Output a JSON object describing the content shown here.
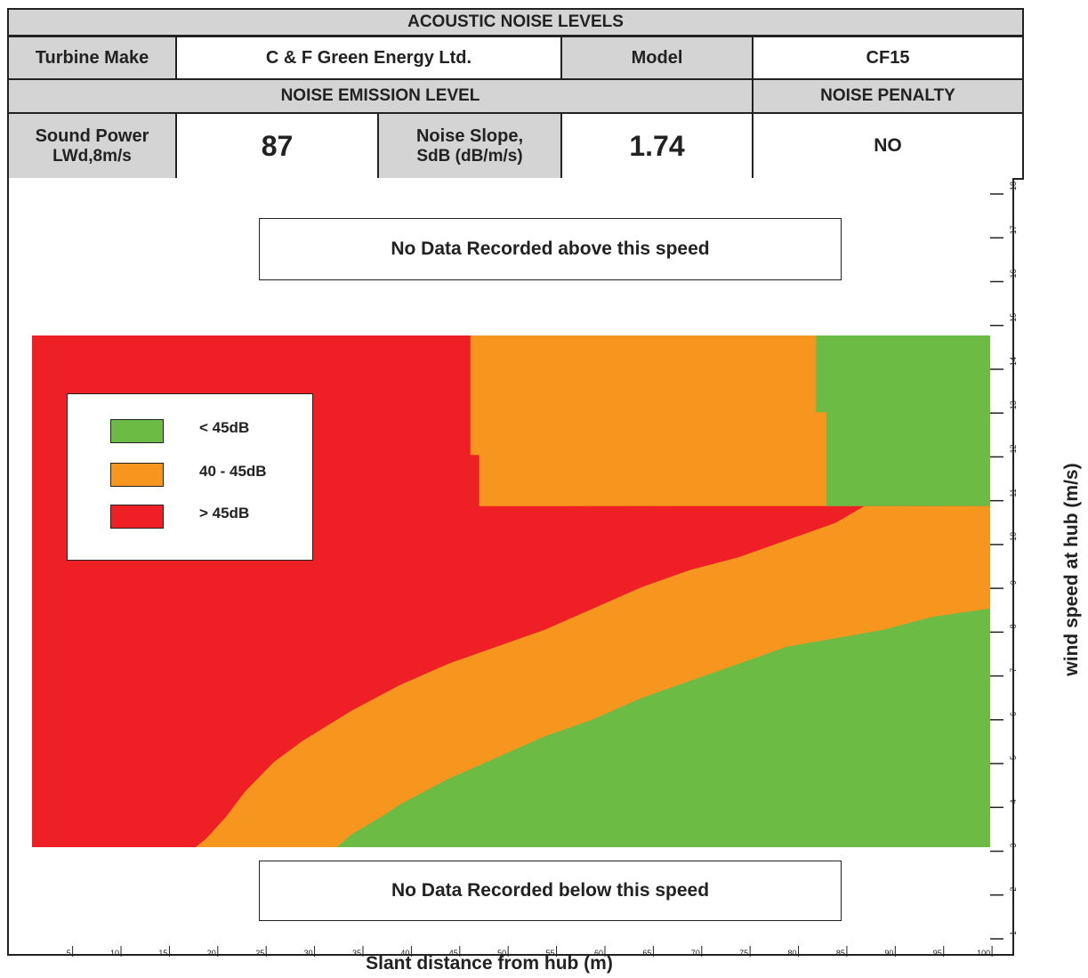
{
  "header": {
    "title": "ACOUSTIC NOISE LEVELS",
    "turbine_make_label": "Turbine Make",
    "turbine_make_value": "C & F Green Energy Ltd.",
    "model_label": "Model",
    "model_value": "CF15",
    "emission_title": "NOISE EMISSION LEVEL",
    "penalty_title": "NOISE PENALTY",
    "sound_power_label_1": "Sound Power",
    "sound_power_label_2": "LWd,8m/s",
    "sound_power_value": "87",
    "noise_slope_label_1": "Noise Slope,",
    "noise_slope_label_2": "SdB (dB/m/s)",
    "noise_slope_value": "1.74",
    "penalty_value": "NO"
  },
  "notes": {
    "above": "No Data Recorded above this speed",
    "below": "No Data Recorded below this speed"
  },
  "legend": [
    {
      "label": "< 45dB",
      "color": "#6bbb44"
    },
    {
      "label": "40 - 45dB",
      "color": "#f7961e"
    },
    {
      "label": "> 45dB",
      "color": "#ee2026"
    }
  ],
  "chart_data": {
    "type": "heatmap",
    "xlabel": "Slant distance from hub (m)",
    "ylabel": "wind speed at hub (m/s)",
    "x_ticks": [
      5,
      10,
      15,
      20,
      25,
      30,
      35,
      40,
      45,
      50,
      55,
      60,
      65,
      70,
      75,
      80,
      85,
      90,
      95,
      100
    ],
    "y_ticks": [
      1,
      2,
      3,
      4,
      5,
      6,
      7,
      8,
      9,
      10,
      11,
      12,
      13,
      14,
      15,
      16,
      17,
      18
    ],
    "xlim": [
      2,
      101.5
    ],
    "ylim": [
      0.3,
      18.6
    ],
    "data_y_range": [
      3,
      15
    ],
    "colors": {
      "green": "#6bbb44",
      "orange": "#f7961e",
      "red": "#ee2026"
    },
    "boundaries_low_wind": {
      "wind_range": [
        3,
        11
      ],
      "red_orange_edge": [
        [
          18.9,
          3
        ],
        [
          20,
          3.2
        ],
        [
          22,
          3.7
        ],
        [
          24,
          4.3
        ],
        [
          27,
          5
        ],
        [
          30,
          5.5
        ],
        [
          35,
          6.2
        ],
        [
          40,
          6.8
        ],
        [
          45,
          7.3
        ],
        [
          50,
          7.7
        ],
        [
          55,
          8.1
        ],
        [
          60,
          8.6
        ],
        [
          65,
          9.1
        ],
        [
          70,
          9.5
        ],
        [
          75,
          9.8
        ],
        [
          80,
          10.2
        ],
        [
          85,
          10.6
        ],
        [
          88,
          11
        ]
      ],
      "orange_green_edge": [
        [
          33.5,
          3
        ],
        [
          35,
          3.3
        ],
        [
          38,
          3.7
        ],
        [
          40,
          4
        ],
        [
          45,
          4.6
        ],
        [
          50,
          5.1
        ],
        [
          55,
          5.6
        ],
        [
          60,
          6
        ],
        [
          65,
          6.5
        ],
        [
          70,
          6.9
        ],
        [
          75,
          7.3
        ],
        [
          80,
          7.7
        ],
        [
          85,
          7.9
        ],
        [
          90,
          8.1
        ],
        [
          95,
          8.4
        ],
        [
          101,
          8.6
        ]
      ]
    },
    "boundaries_high_wind": {
      "wind_range": [
        11,
        15
      ],
      "red_orange_edge": [
        [
          47.3,
          15
        ],
        [
          47.3,
          12.2
        ],
        [
          48.2,
          12.2
        ],
        [
          48.2,
          11
        ]
      ],
      "orange_green_edge": [
        [
          83,
          15
        ],
        [
          83,
          13.2
        ],
        [
          84.1,
          13.2
        ],
        [
          84.1,
          11
        ]
      ]
    }
  }
}
